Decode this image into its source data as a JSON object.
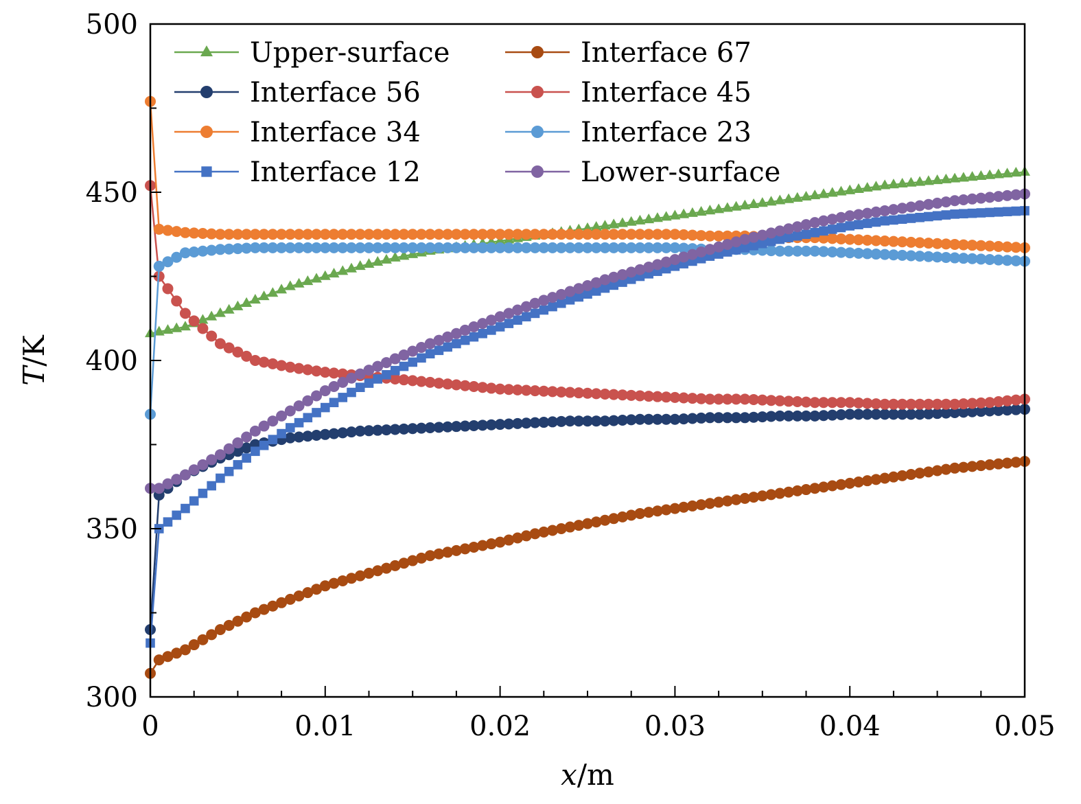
{
  "chart_data": {
    "type": "line",
    "title": "",
    "xlabel_var": "x",
    "xlabel_unit": "/m",
    "ylabel_var": "T",
    "ylabel_unit": "/K",
    "xlim": [
      0,
      0.05
    ],
    "ylim": [
      300,
      500
    ],
    "xticks": [
      0,
      0.01,
      0.02,
      0.03,
      0.04,
      0.05
    ],
    "xtick_labels": [
      "0",
      "0.01",
      "0.02",
      "0.03",
      "0.04",
      "0.05"
    ],
    "yticks": [
      300,
      350,
      400,
      450,
      500
    ],
    "ytick_labels": [
      "300",
      "350",
      "400",
      "450",
      "500"
    ],
    "grid": false,
    "legend_position": "top-left",
    "series": [
      {
        "name": "Upper-surface",
        "color": "#6aa84f",
        "marker": "triangle",
        "x": [
          0,
          0.002,
          0.004,
          0.006,
          0.008,
          0.01,
          0.012,
          0.014,
          0.016,
          0.018,
          0.02,
          0.022,
          0.024,
          0.026,
          0.028,
          0.03,
          0.032,
          0.034,
          0.036,
          0.038,
          0.04,
          0.042,
          0.044,
          0.046,
          0.048,
          0.05
        ],
        "y": [
          408,
          410,
          414,
          418,
          422,
          425,
          428,
          430.5,
          432.5,
          434,
          435.5,
          437,
          438.5,
          440,
          441.5,
          443,
          444.5,
          446,
          447.5,
          449,
          450.5,
          452,
          453,
          454,
          455,
          456
        ]
      },
      {
        "name": "Interface 67",
        "color": "#a84b12",
        "marker": "circle",
        "x": [
          0,
          0.0005,
          0.002,
          0.004,
          0.006,
          0.008,
          0.01,
          0.012,
          0.014,
          0.016,
          0.018,
          0.02,
          0.022,
          0.024,
          0.026,
          0.028,
          0.03,
          0.032,
          0.034,
          0.036,
          0.038,
          0.04,
          0.042,
          0.044,
          0.046,
          0.048,
          0.05
        ],
        "y": [
          307,
          311,
          314,
          320,
          325,
          329,
          333,
          336,
          339,
          342,
          344,
          346,
          348.5,
          350.5,
          352.5,
          354.5,
          356,
          357.5,
          359,
          360.5,
          362,
          363.5,
          365,
          366.5,
          368,
          369,
          370
        ]
      },
      {
        "name": "Interface 56",
        "color": "#233e6e",
        "marker": "circle",
        "x": [
          0,
          0.0005,
          0.002,
          0.004,
          0.006,
          0.008,
          0.01,
          0.012,
          0.014,
          0.016,
          0.018,
          0.02,
          0.022,
          0.024,
          0.026,
          0.028,
          0.03,
          0.032,
          0.034,
          0.036,
          0.038,
          0.04,
          0.042,
          0.044,
          0.046,
          0.048,
          0.05
        ],
        "y": [
          320,
          360,
          366,
          371,
          375,
          377,
          378,
          379,
          379.5,
          380,
          380.5,
          381,
          381.5,
          382,
          382,
          382.5,
          382.5,
          383,
          383,
          383.5,
          383.5,
          384,
          384,
          384,
          384.5,
          385,
          385.5
        ]
      },
      {
        "name": "Interface 45",
        "color": "#c9524e",
        "marker": "circle",
        "x": [
          0,
          0.0005,
          0.002,
          0.004,
          0.006,
          0.008,
          0.01,
          0.012,
          0.014,
          0.016,
          0.018,
          0.02,
          0.022,
          0.024,
          0.026,
          0.028,
          0.03,
          0.032,
          0.034,
          0.036,
          0.038,
          0.04,
          0.042,
          0.044,
          0.046,
          0.048,
          0.05
        ],
        "y": [
          452,
          425,
          414,
          405,
          400,
          398,
          396.5,
          395.5,
          394.5,
          393.5,
          392.5,
          391.5,
          391,
          390.5,
          390,
          389.5,
          389,
          388.5,
          388.5,
          388,
          387.5,
          387.5,
          387,
          387,
          387,
          387.5,
          388.5
        ]
      },
      {
        "name": "Interface 34",
        "color": "#ed7d31",
        "marker": "circle",
        "x": [
          0,
          0.0005,
          0.002,
          0.004,
          0.006,
          0.008,
          0.01,
          0.012,
          0.014,
          0.016,
          0.018,
          0.02,
          0.022,
          0.024,
          0.026,
          0.028,
          0.03,
          0.032,
          0.034,
          0.036,
          0.038,
          0.04,
          0.042,
          0.044,
          0.046,
          0.048,
          0.05
        ],
        "y": [
          477,
          439,
          438,
          437.5,
          437.5,
          437.5,
          437.5,
          437.5,
          437.5,
          437.5,
          437.5,
          437.5,
          437.5,
          437.5,
          437.5,
          437.5,
          437.5,
          437,
          437,
          436.5,
          436.5,
          436,
          435.5,
          435,
          434.5,
          434,
          433.5
        ]
      },
      {
        "name": "Interface 23",
        "color": "#5b9bd5",
        "marker": "circle",
        "x": [
          0,
          0.0005,
          0.002,
          0.004,
          0.006,
          0.008,
          0.01,
          0.012,
          0.014,
          0.016,
          0.018,
          0.02,
          0.022,
          0.024,
          0.026,
          0.028,
          0.03,
          0.032,
          0.034,
          0.036,
          0.038,
          0.04,
          0.042,
          0.044,
          0.046,
          0.048,
          0.05
        ],
        "y": [
          384,
          428,
          432,
          433,
          433.5,
          433.5,
          433.5,
          433.5,
          433.5,
          433.5,
          433.5,
          433.5,
          433.5,
          433.5,
          433.5,
          433.5,
          433.5,
          433,
          433,
          432.5,
          432.5,
          432,
          431.5,
          431,
          430.5,
          430,
          429.5
        ]
      },
      {
        "name": "Interface 12",
        "color": "#4472c4",
        "marker": "square",
        "x": [
          0,
          0.0005,
          0.002,
          0.004,
          0.006,
          0.008,
          0.01,
          0.012,
          0.014,
          0.016,
          0.018,
          0.02,
          0.022,
          0.024,
          0.026,
          0.028,
          0.03,
          0.032,
          0.034,
          0.036,
          0.038,
          0.04,
          0.042,
          0.044,
          0.046,
          0.048,
          0.05
        ],
        "y": [
          316,
          350,
          356,
          365,
          373,
          380,
          386,
          392,
          397,
          402,
          406,
          410,
          414,
          418,
          421.5,
          425,
          428,
          431,
          433.5,
          436,
          438,
          440,
          441.5,
          442.5,
          443.5,
          444,
          444.5
        ]
      },
      {
        "name": "Lower-surface",
        "color": "#8064a2",
        "marker": "circle",
        "x": [
          0,
          0.0005,
          0.002,
          0.004,
          0.006,
          0.008,
          0.01,
          0.012,
          0.014,
          0.016,
          0.018,
          0.02,
          0.022,
          0.024,
          0.026,
          0.028,
          0.03,
          0.032,
          0.034,
          0.036,
          0.038,
          0.04,
          0.042,
          0.044,
          0.046,
          0.048,
          0.05
        ],
        "y": [
          362,
          362,
          366,
          372,
          379,
          385,
          391,
          396,
          400.5,
          405,
          409,
          413,
          417,
          420.5,
          424,
          427,
          430,
          433,
          436,
          438.5,
          441,
          443,
          444.5,
          446,
          447.5,
          448.5,
          449.5
        ]
      }
    ]
  }
}
